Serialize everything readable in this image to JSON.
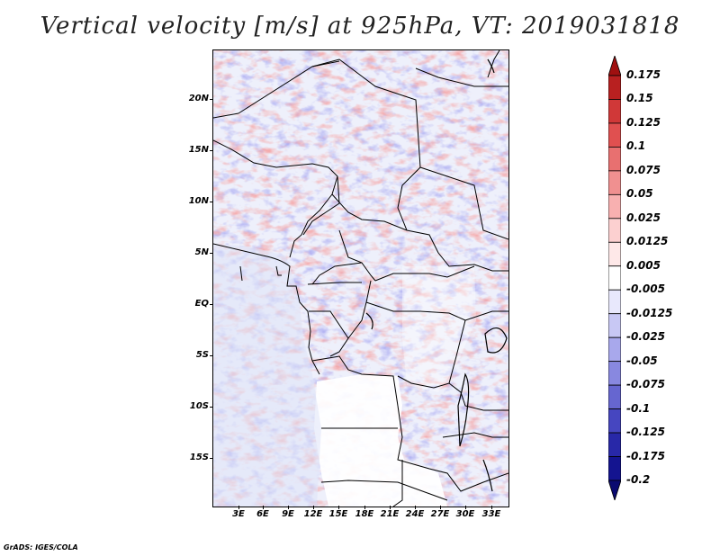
{
  "title": "Vertical velocity [m/s] at 925hPa, VT: 2019031818",
  "credit": "GrADS: IGES/COLA",
  "lat_labels": [
    "20N",
    "15N",
    "10N",
    "5N",
    "EQ",
    "5S",
    "10S",
    "15S"
  ],
  "lon_labels": [
    "3E",
    "6E",
    "9E",
    "12E",
    "15E",
    "18E",
    "21E",
    "24E",
    "27E",
    "30E",
    "33E"
  ],
  "colorbar": {
    "labels": [
      "0.175",
      "0.15",
      "0.125",
      "0.1",
      "0.075",
      "0.05",
      "0.025",
      "0.0125",
      "0.005",
      "-0.005",
      "-0.0125",
      "-0.025",
      "-0.05",
      "-0.075",
      "-0.1",
      "-0.125",
      "-0.175",
      "-0.2"
    ],
    "colors": [
      "#a01010",
      "#b82020",
      "#d03838",
      "#e05050",
      "#e87070",
      "#f09090",
      "#f8b0b0",
      "#fcd0d0",
      "#fee8e8",
      "#ffffff",
      "#e8e8fc",
      "#c8c8f4",
      "#a8a8ec",
      "#8888e0",
      "#6666d0",
      "#4646c0",
      "#2828a8",
      "#141490",
      "#0a0a70"
    ]
  },
  "field_colors": {
    "positive": "#e85a5a",
    "negative": "#6a6ae0"
  }
}
